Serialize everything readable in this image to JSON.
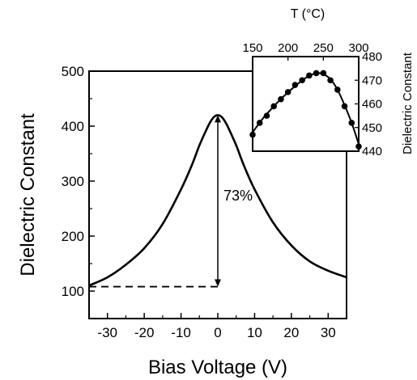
{
  "chart_data": [
    {
      "type": "line",
      "xlabel": "Bias Voltage (V)",
      "ylabel": "Dielectric Constant",
      "xlim": [
        -35,
        35
      ],
      "ylim": [
        50,
        500
      ],
      "xticks": [
        "-30",
        "-20",
        "-10",
        "0",
        "10",
        "20",
        "30"
      ],
      "yticks": [
        "100",
        "200",
        "300",
        "400",
        "500"
      ],
      "grid": false,
      "series": [
        {
          "x": [
            -35,
            -30,
            -25,
            -20,
            -15,
            -10,
            -7,
            -5,
            -3,
            -2,
            -1,
            0,
            1,
            2,
            3,
            5,
            7,
            10,
            15,
            20,
            25,
            30,
            35
          ],
          "y": [
            110,
            125,
            148,
            178,
            222,
            285,
            330,
            365,
            395,
            408,
            417,
            420,
            417,
            408,
            395,
            365,
            330,
            285,
            225,
            183,
            154,
            137,
            125
          ]
        }
      ],
      "annotations": [
        {
          "text": "73%",
          "type": "tunability-arrow",
          "x": 0,
          "y_from": 108,
          "y_to": 420
        }
      ],
      "reference_line": {
        "style": "dashed",
        "y": 108,
        "x_from": -35,
        "x_to": 0
      }
    },
    {
      "type": "scatter",
      "xlabel": "T (°C)",
      "ylabel": "Dielectric Constant",
      "xlim": [
        150,
        300
      ],
      "ylim": [
        440,
        480
      ],
      "xticks": [
        "150",
        "200",
        "250",
        "300"
      ],
      "yticks": [
        "440",
        "450",
        "460",
        "470",
        "480"
      ],
      "x_axis_position": "top",
      "y_axis_position": "right",
      "series": [
        {
          "x": [
            150,
            160,
            170,
            180,
            190,
            200,
            210,
            220,
            230,
            240,
            250,
            260,
            270,
            280,
            290,
            300
          ],
          "y": [
            447,
            452,
            455,
            459,
            462,
            465,
            468,
            470,
            472,
            473,
            473,
            470,
            466,
            459,
            452,
            442
          ]
        }
      ],
      "fit_curve": {
        "x": [
          150,
          165,
          180,
          195,
          210,
          225,
          240,
          250,
          260,
          270,
          280,
          290,
          300
        ],
        "y": [
          448,
          454,
          459,
          463.5,
          467.5,
          471,
          473,
          472.5,
          470.5,
          466,
          459.5,
          452,
          443
        ]
      }
    }
  ]
}
